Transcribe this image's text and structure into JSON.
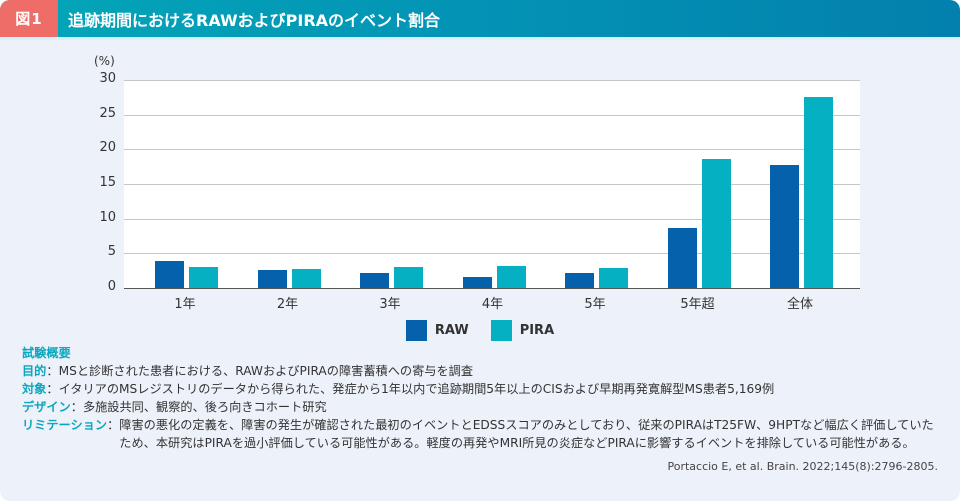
{
  "header": {
    "figure_label": "図1",
    "title": "追跡期間におけるRAWおよびPIRAのイベント割合"
  },
  "colors": {
    "raw": "#0561ab",
    "pira": "#04b0c1",
    "badge": "#ef6d68",
    "accent": "#0aa7c0"
  },
  "chart_data": {
    "type": "bar",
    "title": "追跡期間におけるRAWおよびPIRAのイベント割合",
    "xlabel": "",
    "ylabel": "(%)",
    "ylim": [
      0,
      30
    ],
    "yticks": [
      "0",
      "5",
      "10",
      "15",
      "20",
      "25",
      "30"
    ],
    "grid": true,
    "legend_position": "bottom",
    "categories": [
      "1年",
      "2年",
      "3年",
      "4年",
      "5年",
      "5年超",
      "全体"
    ],
    "series": [
      {
        "name": "RAW",
        "color": "#0561ab",
        "values": [
          3.9,
          2.6,
          2.1,
          1.6,
          2.1,
          8.7,
          17.7
        ]
      },
      {
        "name": "PIRA",
        "color": "#04b0c1",
        "values": [
          3.1,
          2.7,
          3.0,
          3.2,
          2.9,
          18.6,
          27.6
        ]
      }
    ]
  },
  "summary": {
    "heading": "試験概要",
    "rows": [
      {
        "label": "目的",
        "sep": "：",
        "text": "MSと診断された患者における、RAWおよびPIRAの障害蓄積への寄与を調査"
      },
      {
        "label": "対象",
        "sep": "：",
        "text": "イタリアのMSレジストリのデータから得られた、発症から1年以内で追跡期間5年以上のCISおよび早期再発寛解型MS患者5,169例"
      },
      {
        "label": "デザイン",
        "sep": "：",
        "text": "多施設共同、観察的、後ろ向きコホート研究"
      },
      {
        "label": "リミテーション",
        "sep": "：",
        "text": "障害の悪化の定義を、障害の発生が確認された最初のイベントとEDSSスコアのみとしており、従来のPIRAはT25FW、9HPTなど幅広く評価していたため、本研究はPIRAを過小評価している可能性がある。軽度の再発やMRI所見の炎症などPIRAに影響するイベントを排除している可能性がある。"
      }
    ]
  },
  "citation": "Portaccio E, et al. Brain. 2022;145(8):2796-2805."
}
